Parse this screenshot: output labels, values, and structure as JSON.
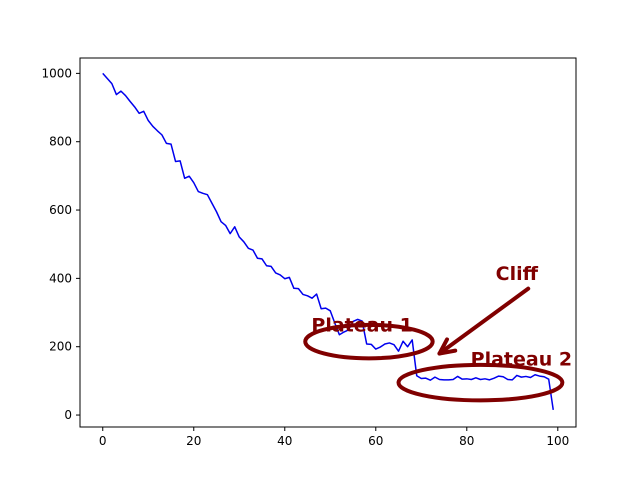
{
  "chart_data": {
    "type": "line",
    "title": "",
    "xlabel": "",
    "ylabel": "",
    "xlim": [
      -5,
      104
    ],
    "ylim": [
      -35,
      1045
    ],
    "grid": false,
    "xticks": [
      0,
      20,
      40,
      60,
      80,
      100
    ],
    "yticks": [
      0,
      200,
      400,
      600,
      800,
      1000
    ],
    "xtick_labels": [
      "0",
      "20",
      "40",
      "60",
      "80",
      "100"
    ],
    "ytick_labels": [
      "0",
      "200",
      "400",
      "600",
      "800",
      "1000"
    ],
    "series": [
      {
        "color": "#0000ee",
        "x": [
          0,
          1,
          2,
          3,
          4,
          5,
          6,
          7,
          8,
          9,
          10,
          11,
          12,
          13,
          14,
          15,
          16,
          17,
          18,
          19,
          20,
          21,
          22,
          23,
          24,
          25,
          26,
          27,
          28,
          29,
          30,
          31,
          32,
          33,
          34,
          35,
          36,
          37,
          38,
          39,
          40,
          41,
          42,
          43,
          44,
          45,
          46,
          47,
          48,
          49,
          50,
          51,
          52,
          53,
          54,
          55,
          56,
          57,
          58,
          59,
          60,
          61,
          62,
          63,
          64,
          65,
          66,
          67,
          68,
          69,
          70,
          71,
          72,
          73,
          74,
          75,
          76,
          77,
          78,
          79,
          80,
          81,
          82,
          83,
          84,
          85,
          86,
          87,
          88,
          89,
          90,
          91,
          92,
          93,
          94,
          95,
          96,
          97,
          98,
          99
        ],
        "y": [
          1000,
          985,
          970,
          938,
          948,
          935,
          918,
          902,
          883,
          889,
          862,
          845,
          832,
          820,
          795,
          793,
          742,
          744,
          693,
          699,
          680,
          654,
          649,
          645,
          620,
          595,
          566,
          555,
          531,
          551,
          521,
          507,
          488,
          483,
          459,
          457,
          437,
          435,
          416,
          410,
          399,
          403,
          371,
          370,
          353,
          349,
          342,
          354,
          311,
          313,
          305,
          269,
          235,
          243,
          249,
          274,
          280,
          275,
          208,
          207,
          193,
          199,
          208,
          211,
          206,
          187,
          216,
          200,
          220,
          115,
          107,
          108,
          102,
          111,
          104,
          103,
          103,
          104,
          113,
          105,
          106,
          104,
          109,
          104,
          106,
          103,
          108,
          114,
          112,
          104,
          103,
          116,
          111,
          113,
          110,
          118,
          114,
          112,
          105,
          15
        ]
      }
    ],
    "annotations": [
      {
        "text": "Plateau 1",
        "x": 57,
        "y": 245
      },
      {
        "text": "Plateau 2",
        "x": 92,
        "y": 145
      },
      {
        "text": "Cliff",
        "x": 91,
        "y": 395
      }
    ],
    "highlights": [
      {
        "label": "plateau-1-ellipse",
        "cx": 58.5,
        "cy": 215,
        "rx": 14,
        "ry": 49
      },
      {
        "label": "plateau-2-ellipse",
        "cx": 83,
        "cy": 95,
        "rx": 18,
        "ry": 52
      }
    ],
    "arrow": {
      "from": [
        93.5,
        370
      ],
      "to": [
        74,
        180
      ]
    },
    "annotation_color": "#800000"
  }
}
